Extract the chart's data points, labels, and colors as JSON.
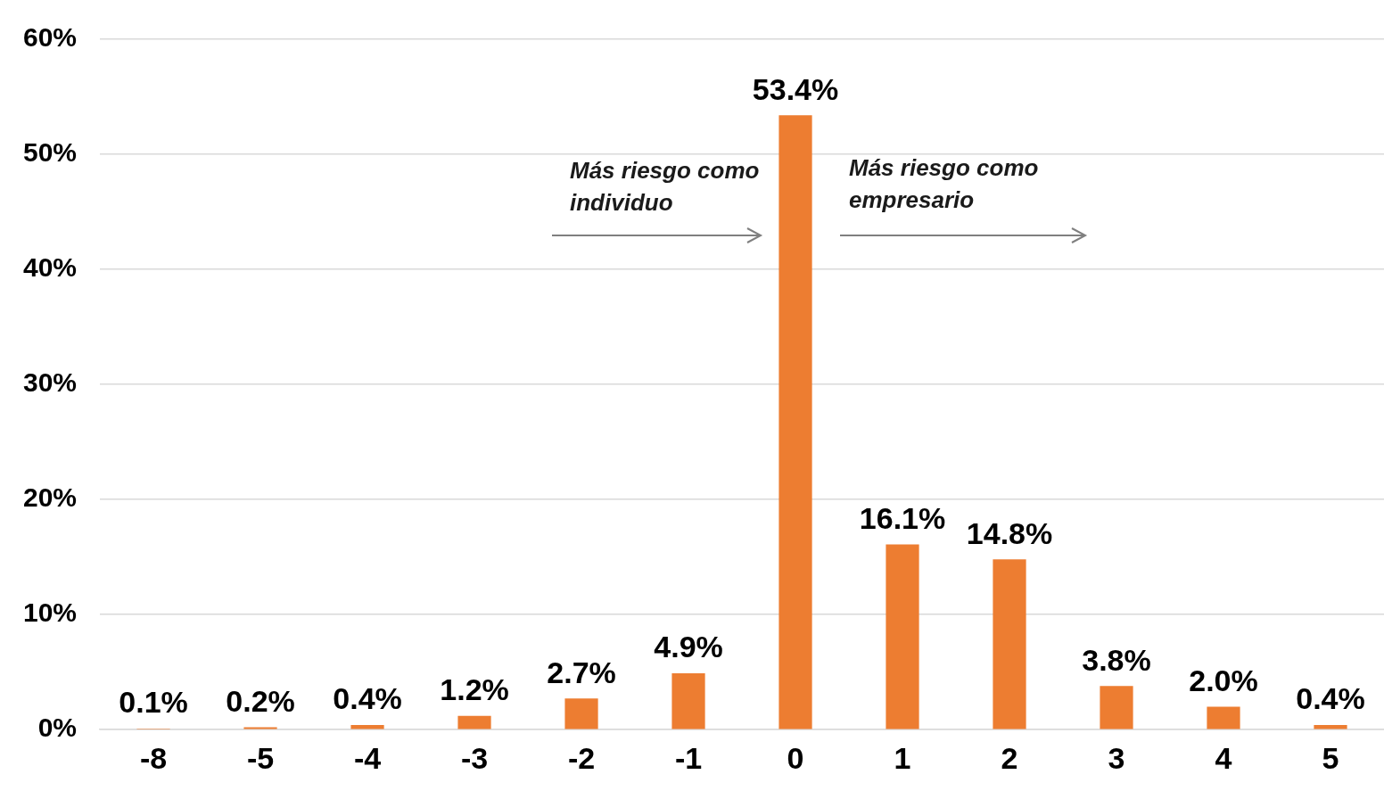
{
  "chart_data": {
    "type": "bar",
    "categories": [
      "-8",
      "-5",
      "-4",
      "-3",
      "-2",
      "-1",
      "0",
      "1",
      "2",
      "3",
      "4",
      "5"
    ],
    "values": [
      0.1,
      0.2,
      0.4,
      1.2,
      2.7,
      4.9,
      53.4,
      16.1,
      14.8,
      3.8,
      2.0,
      0.4
    ],
    "value_labels": [
      "0.1%",
      "0.2%",
      "0.4%",
      "1.2%",
      "2.7%",
      "4.9%",
      "53.4%",
      "16.1%",
      "14.8%",
      "3.8%",
      "2.0%",
      "0.4%"
    ],
    "color": "#ed7d31",
    "ylim": [
      0,
      60
    ],
    "yticks": [
      {
        "value": 0,
        "label": "0%"
      },
      {
        "value": 10,
        "label": "10%"
      },
      {
        "value": 20,
        "label": "20%"
      },
      {
        "value": 30,
        "label": "30%"
      },
      {
        "value": 40,
        "label": "40%"
      },
      {
        "value": 50,
        "label": "50%"
      },
      {
        "value": 60,
        "label": "60%"
      }
    ],
    "grid": "y",
    "legend": false,
    "annotations": [
      "Más riesgo como individuo",
      "Más riesgo como empresario"
    ]
  }
}
